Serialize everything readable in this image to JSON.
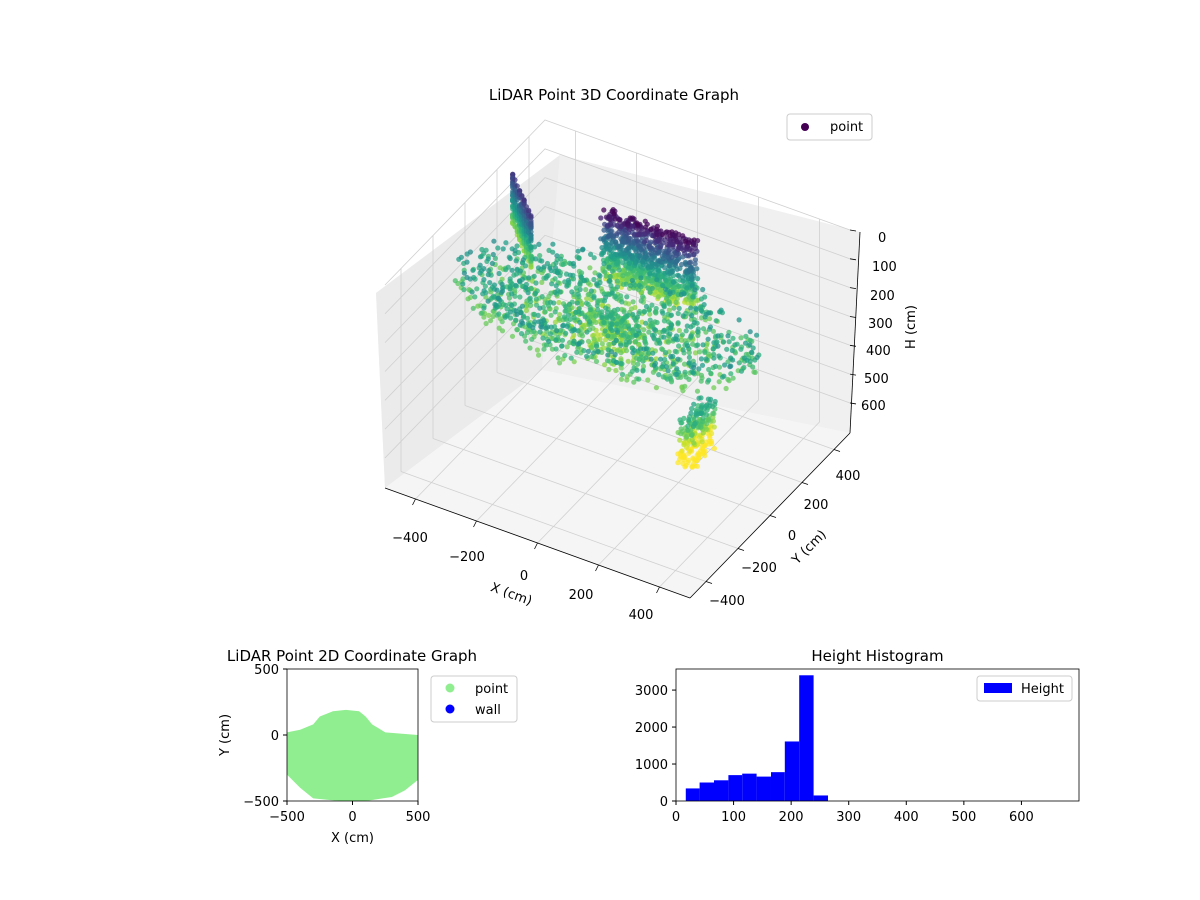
{
  "chart_data": [
    {
      "type": "scatter",
      "projection": "3d",
      "title": "LiDAR Point 3D Coordinate Graph",
      "xlabel": "X (cm)",
      "ylabel": "Y (cm)",
      "zlabel": "H (cm)",
      "xticks": [
        "−400",
        "−200",
        "0",
        "200",
        "400"
      ],
      "yticks": [
        "−400",
        "−200",
        "0",
        "200",
        "400"
      ],
      "zticks": [
        "0",
        "100",
        "200",
        "300",
        "400",
        "500",
        "600"
      ],
      "xlim": [
        -500,
        500
      ],
      "ylim": [
        -500,
        500
      ],
      "zlim": [
        0,
        680
      ],
      "z_axis_inverted": true,
      "colormap": "viridis",
      "legend": {
        "position": "top-right",
        "entries": [
          {
            "label": "point",
            "color": "#440154"
          }
        ]
      },
      "grid": true
    },
    {
      "type": "scatter",
      "title": "LiDAR Point 2D Coordinate Graph",
      "xlabel": "X (cm)",
      "ylabel": "Y (cm)",
      "xticks": [
        "−500",
        "0",
        "500"
      ],
      "yticks": [
        "500",
        "0",
        "−500"
      ],
      "xlim": [
        -500,
        500
      ],
      "ylim": [
        -500,
        500
      ],
      "series": [
        {
          "name": "point",
          "color": "#90ee90"
        },
        {
          "name": "wall",
          "color": "#0000ff"
        }
      ],
      "point_region_outline": [
        [
          -500,
          20
        ],
        [
          -400,
          40
        ],
        [
          -300,
          80
        ],
        [
          -250,
          140
        ],
        [
          -150,
          180
        ],
        [
          -50,
          190
        ],
        [
          50,
          180
        ],
        [
          100,
          140
        ],
        [
          150,
          80
        ],
        [
          250,
          20
        ],
        [
          380,
          10
        ],
        [
          500,
          0
        ],
        [
          500,
          -340
        ],
        [
          400,
          -420
        ],
        [
          300,
          -470
        ],
        [
          100,
          -500
        ],
        [
          -100,
          -500
        ],
        [
          -300,
          -480
        ],
        [
          -400,
          -400
        ],
        [
          -500,
          -300
        ]
      ],
      "legend": {
        "position": "right-outside"
      }
    },
    {
      "type": "bar",
      "title": "Height Histogram",
      "xlabel": "",
      "ylabel": "",
      "bin_edges": [
        17,
        41,
        66,
        91,
        115,
        140,
        165,
        189,
        214,
        239,
        264
      ],
      "values": [
        340,
        500,
        560,
        700,
        740,
        660,
        780,
        1610,
        3400,
        150
      ],
      "xticks": [
        "0",
        "100",
        "200",
        "300",
        "400",
        "500",
        "600"
      ],
      "yticks": [
        "0",
        "1000",
        "2000",
        "3000"
      ],
      "xlim": [
        0,
        700
      ],
      "ylim": [
        0,
        3570
      ],
      "series": [
        {
          "name": "Height",
          "color": "#0000ff"
        }
      ],
      "legend": {
        "position": "top-right"
      }
    }
  ]
}
